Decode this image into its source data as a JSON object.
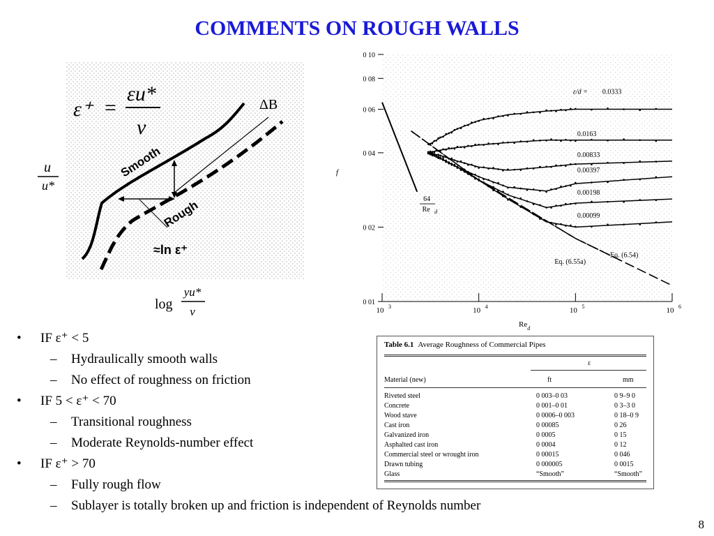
{
  "slide": {
    "title": "COMMENTS ON ROUGH WALLS",
    "page_number": "8",
    "accent_color": "#1a1ad6"
  },
  "sketch": {
    "eq_lhs": "ε⁺",
    "eq_equals": "=",
    "eq_numerator": "εu*",
    "eq_denominator": "ν",
    "smooth_label": "Smooth",
    "rough_label": "Rough",
    "delta_b_label": "ΔB",
    "ln_label": "≈ln ε⁺",
    "y_label_num": "u",
    "y_label_den": "u*",
    "x_label_log": "log",
    "x_label_num": "yu*",
    "x_label_den": "ν"
  },
  "chart_data": {
    "type": "line",
    "title": "",
    "xlabel": "Re_d",
    "ylabel": "f",
    "x_scale": "log",
    "y_scale": "log",
    "xlim": [
      1000,
      1000000
    ],
    "ylim": [
      0.01,
      0.1
    ],
    "x_ticks": [
      {
        "base": "10",
        "exp": "3",
        "value": 1000
      },
      {
        "base": "10",
        "exp": "4",
        "value": 10000
      },
      {
        "base": "10",
        "exp": "5",
        "value": 100000
      },
      {
        "base": "10",
        "exp": "6",
        "value": 1000000
      }
    ],
    "y_ticks": [
      {
        "label": "0 10",
        "value": 0.1
      },
      {
        "label": "0 08",
        "value": 0.08
      },
      {
        "label": "0 06",
        "value": 0.06
      },
      {
        "label": "0 04",
        "value": 0.04
      },
      {
        "label": "0 02",
        "value": 0.02
      },
      {
        "label": "0 01",
        "value": 0.01
      }
    ],
    "laminar": {
      "label_num": "64",
      "label_den": "Re",
      "label_sub": "d",
      "x": [
        1000,
        2300
      ],
      "y": [
        0.064,
        0.0278
      ]
    },
    "series": [
      {
        "name": "0.0333",
        "name_prefix": "ε/d = ",
        "x": [
          3000,
          4000,
          6000,
          10000,
          20000,
          50000,
          100000,
          1000000
        ],
        "y": [
          0.043,
          0.046,
          0.05,
          0.054,
          0.057,
          0.059,
          0.06,
          0.06
        ]
      },
      {
        "name": "0.0163",
        "x": [
          3000,
          4000,
          6000,
          10000,
          20000,
          50000,
          100000,
          1000000
        ],
        "y": [
          0.04,
          0.041,
          0.042,
          0.043,
          0.044,
          0.045,
          0.045,
          0.045
        ]
      },
      {
        "name": "0.00833",
        "x": [
          3000,
          4000,
          6000,
          10000,
          20000,
          50000,
          100000,
          1000000
        ],
        "y": [
          0.04,
          0.039,
          0.037,
          0.035,
          0.034,
          0.035,
          0.036,
          0.037
        ]
      },
      {
        "name": "0.00397",
        "x": [
          3000,
          4000,
          6000,
          10000,
          20000,
          50000,
          100000,
          1000000
        ],
        "y": [
          0.04,
          0.038,
          0.035,
          0.032,
          0.029,
          0.028,
          0.03,
          0.032
        ]
      },
      {
        "name": "0.00198",
        "x": [
          3000,
          4000,
          6000,
          10000,
          20000,
          50000,
          100000,
          1000000
        ],
        "y": [
          0.04,
          0.038,
          0.035,
          0.031,
          0.027,
          0.024,
          0.025,
          0.026
        ]
      },
      {
        "name": "0.00099",
        "x": [
          3000,
          4000,
          6000,
          10000,
          20000,
          50000,
          100000,
          1000000
        ],
        "y": [
          0.04,
          0.038,
          0.035,
          0.031,
          0.026,
          0.021,
          0.02,
          0.021
        ]
      }
    ],
    "smooth_pipe_lines": [
      {
        "name": "Eq. (6.54)",
        "dash": "long",
        "x": [
          2000,
          10000,
          100000,
          1000000
        ],
        "y": [
          0.049,
          0.031,
          0.018,
          0.0116
        ]
      },
      {
        "name": "Eq. (6.55a)",
        "dash": "short",
        "x": [
          2000,
          10000,
          100000,
          300000
        ],
        "y": [
          0.049,
          0.031,
          0.018,
          0.0146
        ]
      }
    ]
  },
  "table": {
    "number": "Table 6.1",
    "caption": "Average Roughness of Commercial Pipes",
    "epsilon_header": "ε",
    "col_material": "Material (new)",
    "col_ft": "ft",
    "col_mm": "mm",
    "rows": [
      {
        "material": "Riveted steel",
        "ft": "0 003–0 03",
        "mm": "0 9–9 0"
      },
      {
        "material": "Concrete",
        "ft": "0 001–0 01",
        "mm": "0 3–3 0"
      },
      {
        "material": "Wood stave",
        "ft": "0 0006–0 003",
        "mm": "0 18–0 9"
      },
      {
        "material": "Cast iron",
        "ft": "0 00085",
        "mm": "0 26"
      },
      {
        "material": "Galvanized iron",
        "ft": "0 0005",
        "mm": "0 15"
      },
      {
        "material": "Asphalted cast iron",
        "ft": "0 0004",
        "mm": "0 12"
      },
      {
        "material": "Commercial steel or wrought iron",
        "ft": "0 00015",
        "mm": "0 046"
      },
      {
        "material": "Drawn tubing",
        "ft": "0 000005",
        "mm": "0 0015"
      },
      {
        "material": "Glass",
        "ft": "“Smooth”",
        "mm": "“Smooth”"
      }
    ]
  },
  "bullets": [
    {
      "level": 1,
      "marker": "•",
      "text": "IF ε⁺ < 5"
    },
    {
      "level": 2,
      "marker": "–",
      "text": "Hydraulically smooth walls"
    },
    {
      "level": 2,
      "marker": "–",
      "text": "No effect of roughness on friction"
    },
    {
      "level": 1,
      "marker": "•",
      "text": "IF 5 < ε⁺ < 70"
    },
    {
      "level": 2,
      "marker": "–",
      "text": "Transitional roughness"
    },
    {
      "level": 2,
      "marker": "–",
      "text": "Moderate Reynolds-number effect"
    },
    {
      "level": 1,
      "marker": "•",
      "text": "IF ε⁺ > 70"
    },
    {
      "level": 2,
      "marker": "–",
      "text": "Fully rough flow"
    },
    {
      "level": 2,
      "marker": "–",
      "text": "Sublayer is totally broken up and friction is independent of Reynolds number"
    }
  ]
}
